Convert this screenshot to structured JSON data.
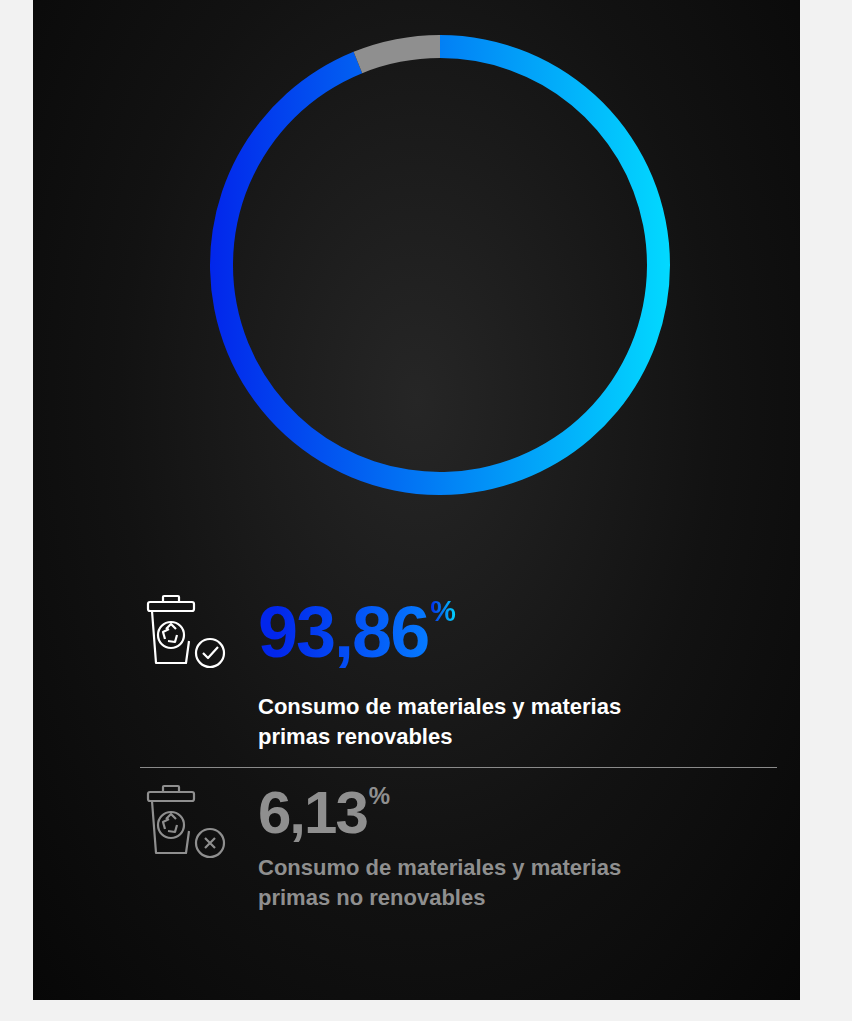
{
  "chart_data": {
    "type": "doughnut",
    "categories": [
      "Consumo de materiales y materias primas renovables",
      "Consumo de materiales y materias primas no renovables"
    ],
    "values": [
      93.86,
      6.13
    ],
    "value_labels": [
      "93,86%",
      "6,13%"
    ],
    "colors": [
      "#0a7cff",
      "#8f8f8f"
    ]
  }
}
